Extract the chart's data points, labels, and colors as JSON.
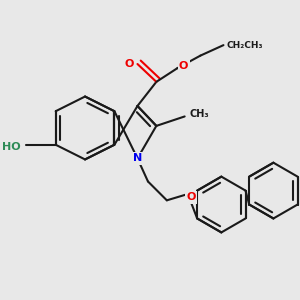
{
  "background_color": "#e8e8e8",
  "bond_color": "#1a1a1a",
  "bond_width": 1.5,
  "dbo": 4.5,
  "atom_colors": {
    "N": "#0000ee",
    "O": "#ee0000",
    "HO": "#2e8b57",
    "C": "#1a1a1a"
  },
  "figsize": [
    3.0,
    3.0
  ],
  "dpi": 100
}
